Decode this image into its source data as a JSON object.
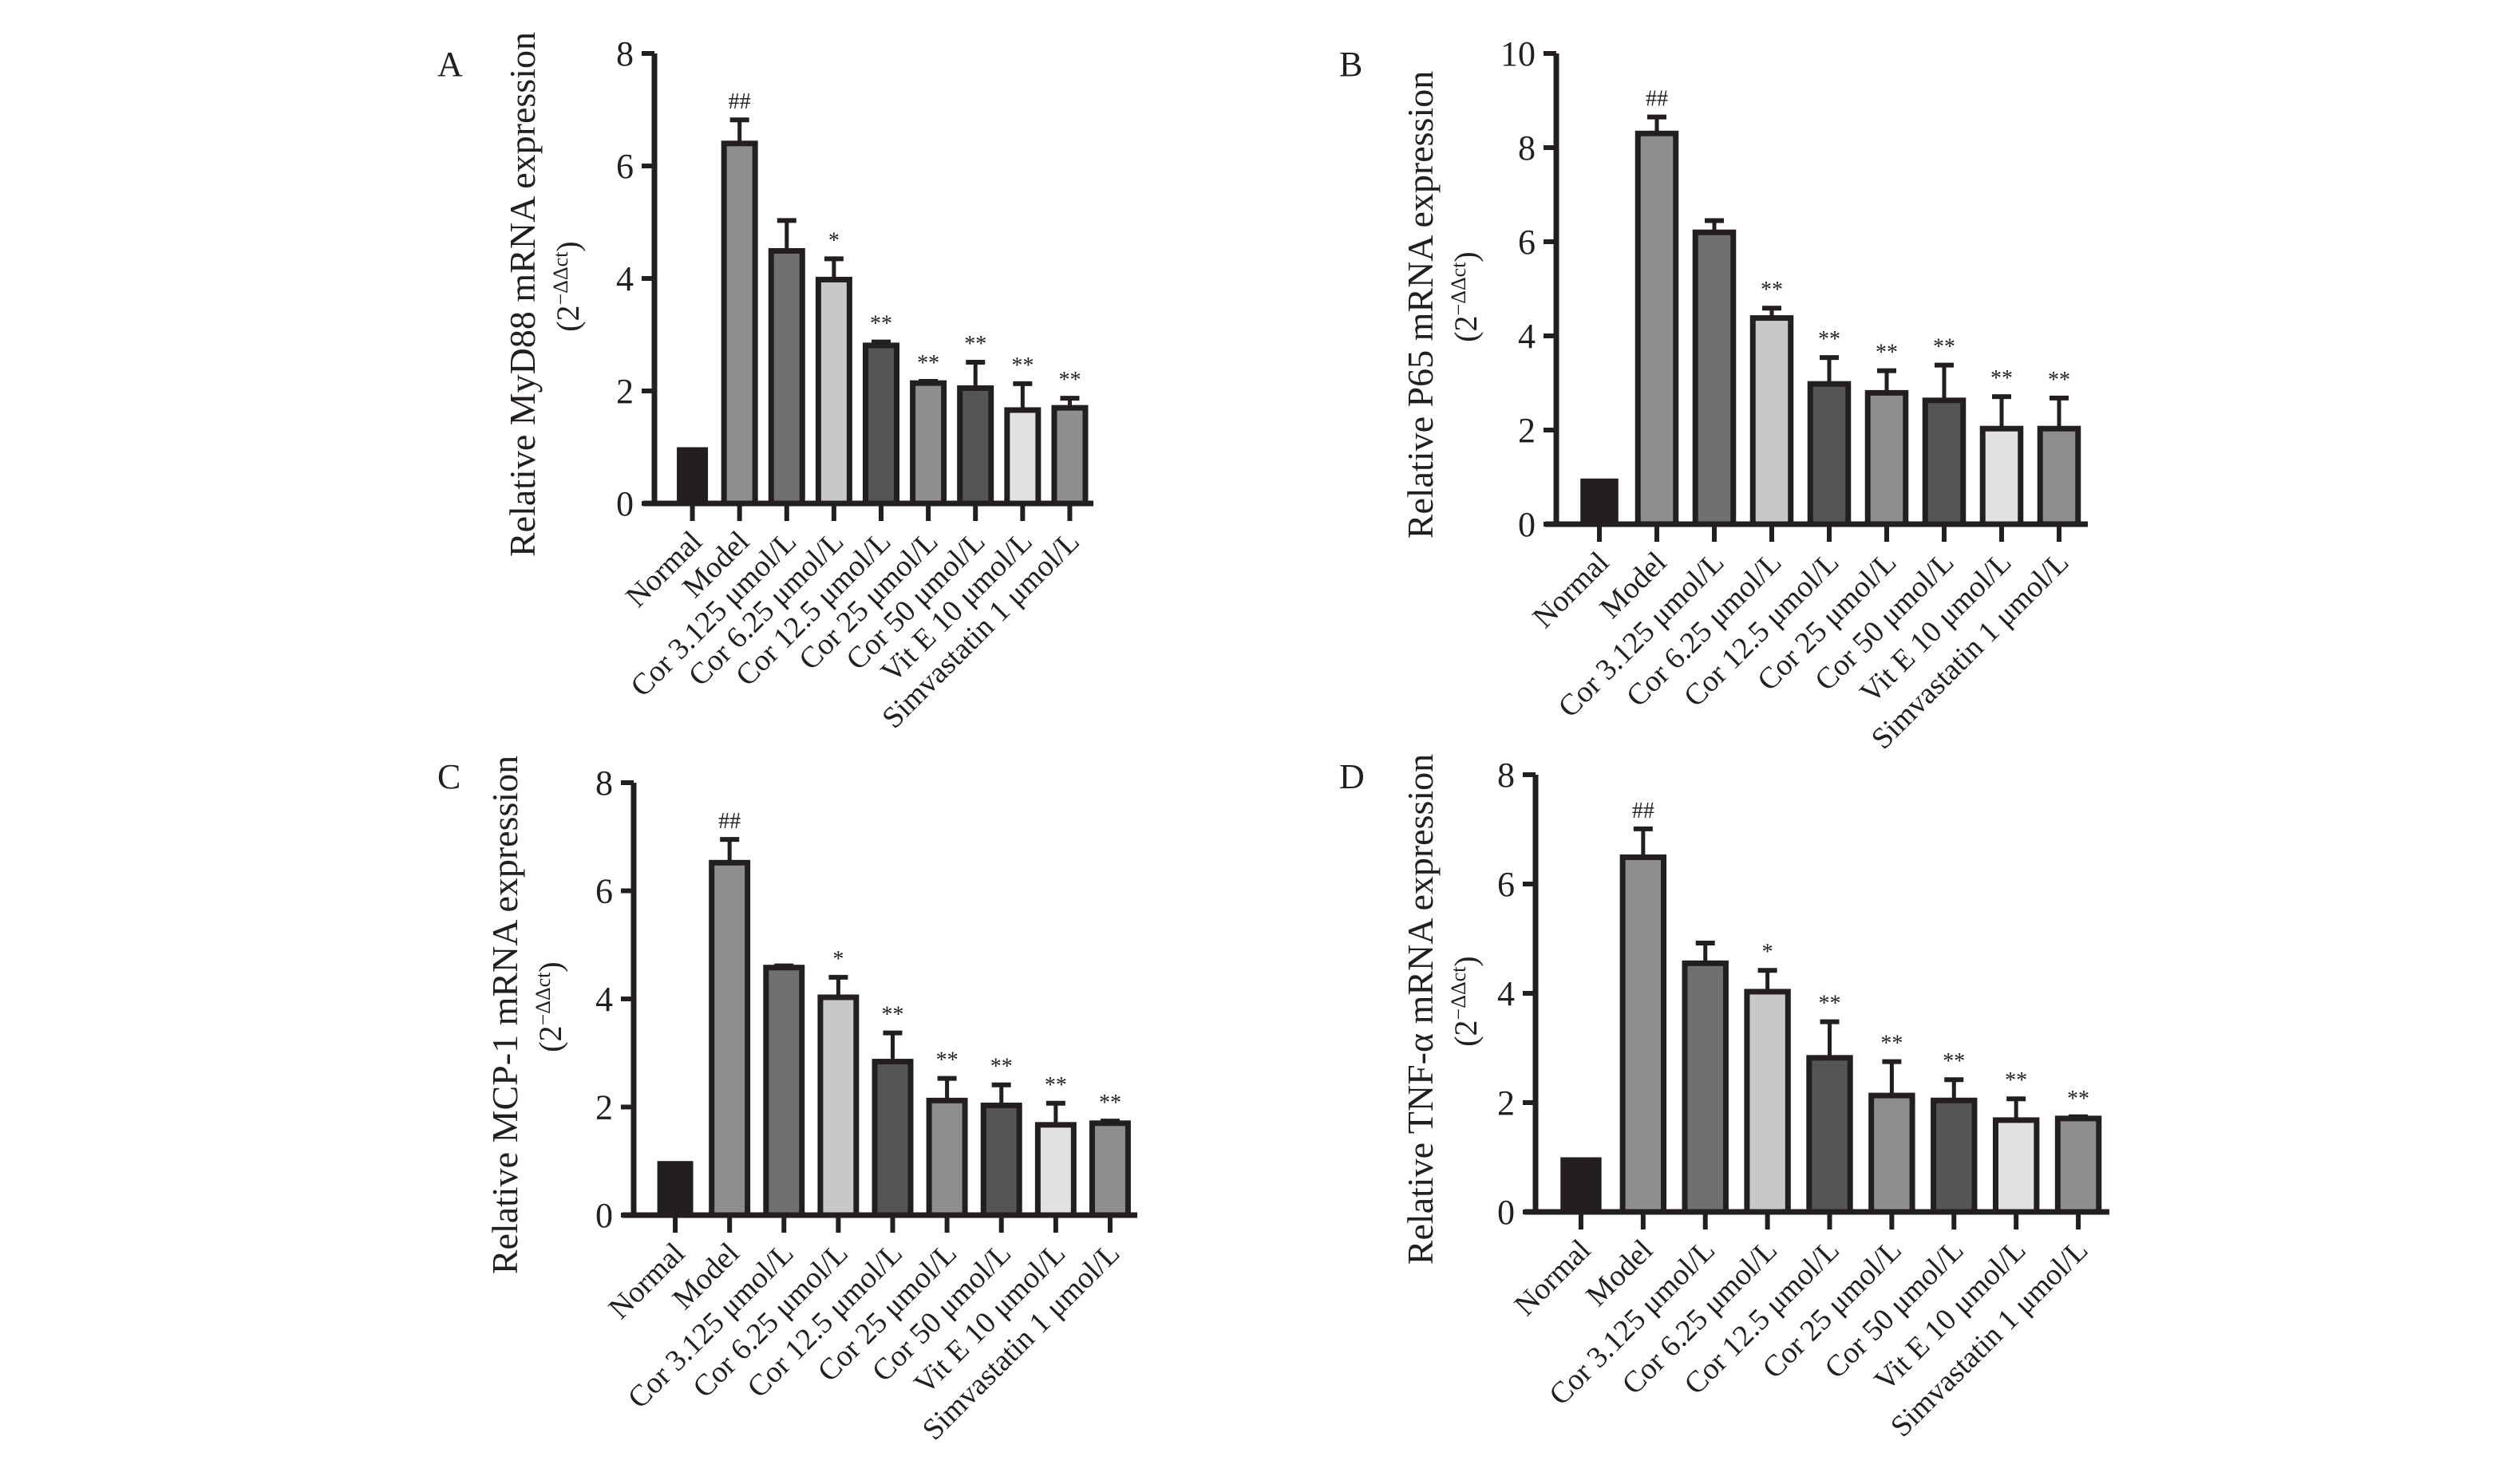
{
  "figure": {
    "colors": {
      "axis": "#231f20",
      "bar_outline": "#231f20",
      "bar_fills": [
        "#231f20",
        "#8e8e8e",
        "#707070",
        "#c8c8c8",
        "#555555",
        "#8e8e8e",
        "#555555",
        "#e2e2e2",
        "#8e8e8e"
      ]
    }
  },
  "chart_data": [
    {
      "panel": "A",
      "type": "bar",
      "title": "",
      "ylabel": "Relative MyD88 mRNA expression",
      "ylabel_unit_open": "(2",
      "ylabel_unit_sup": "−ΔΔct",
      "ylabel_unit_close": ")",
      "xlabel": "",
      "ylim": [
        0,
        8
      ],
      "yticks": [
        0,
        2,
        4,
        6,
        8
      ],
      "categories": [
        "Normal",
        "Model",
        "Cor 3.125 μmol/L",
        "Cor 6.25 μmol/L",
        "Cor 12.5 μmol/L",
        "Cor 25 μmol/L",
        "Cor 50 μmol/L",
        "Vit E 10 μmol/L",
        "Simvastatin 1 μmol/L"
      ],
      "values": [
        1.0,
        6.4,
        4.49,
        3.98,
        2.81,
        2.14,
        2.05,
        1.66,
        1.7
      ],
      "error_upper": [
        1.0,
        6.82,
        5.03,
        4.35,
        2.87,
        2.17,
        2.51,
        2.13,
        1.87
      ],
      "significance": [
        "",
        "##",
        "",
        "*",
        "**",
        "**",
        "**",
        "**",
        "**"
      ],
      "grid": false,
      "legend": "none"
    },
    {
      "panel": "B",
      "type": "bar",
      "title": "",
      "ylabel": "Relative P65 mRNA expression",
      "ylabel_unit_open": "(2",
      "ylabel_unit_sup": "−ΔΔct",
      "ylabel_unit_close": ")",
      "xlabel": "",
      "ylim": [
        0,
        10
      ],
      "yticks": [
        0,
        2,
        4,
        6,
        8,
        10
      ],
      "categories": [
        "Normal",
        "Model",
        "Cor 3.125 μmol/L",
        "Cor 6.25 μmol/L",
        "Cor 12.5 μmol/L",
        "Cor 25 μmol/L",
        "Cor 50 μmol/L",
        "Vit E 10 μmol/L",
        "Simvastatin 1 μmol/L"
      ],
      "values": [
        0.97,
        8.3,
        6.2,
        4.38,
        2.98,
        2.79,
        2.63,
        2.03,
        2.03
      ],
      "error_upper": [
        0.97,
        8.65,
        6.45,
        4.59,
        3.54,
        3.26,
        3.38,
        2.71,
        2.68
      ],
      "significance": [
        "",
        "##",
        "",
        "**",
        "**",
        "**",
        "**",
        "**",
        "**"
      ],
      "grid": false,
      "legend": "none"
    },
    {
      "panel": "C",
      "type": "bar",
      "title": "",
      "ylabel": "Relative MCP-1 mRNA expression",
      "ylabel_unit_open": "(2",
      "ylabel_unit_sup": "−ΔΔct",
      "ylabel_unit_close": ")",
      "xlabel": "",
      "ylim": [
        0,
        8
      ],
      "yticks": [
        0,
        2,
        4,
        6,
        8
      ],
      "categories": [
        "Normal",
        "Model",
        "Cor 3.125 μmol/L",
        "Cor 6.25 μmol/L",
        "Cor 12.5 μmol/L",
        "Cor 25 μmol/L",
        "Cor 50 μmol/L",
        "Vit E 10 μmol/L",
        "Simvastatin 1 μmol/L"
      ],
      "values": [
        1.0,
        6.52,
        4.58,
        4.03,
        2.84,
        2.12,
        2.03,
        1.67,
        1.7
      ],
      "error_upper": [
        1.0,
        6.95,
        4.61,
        4.4,
        3.37,
        2.53,
        2.41,
        2.07,
        1.74
      ],
      "significance": [
        "",
        "##",
        "",
        "*",
        "**",
        "**",
        "**",
        "**",
        "**"
      ],
      "grid": false,
      "legend": "none"
    },
    {
      "panel": "D",
      "type": "bar",
      "title": "",
      "ylabel": "Relative TNF-α mRNA expression",
      "ylabel_unit_open": "(2",
      "ylabel_unit_sup": "−ΔΔct",
      "ylabel_unit_close": ")",
      "xlabel": "",
      "ylim": [
        0,
        8
      ],
      "yticks": [
        0,
        2,
        4,
        6,
        8
      ],
      "categories": [
        "Normal",
        "Model",
        "Cor 3.125 μmol/L",
        "Cor 6.25 μmol/L",
        "Cor 12.5 μmol/L",
        "Cor 25 μmol/L",
        "Cor 50 μmol/L",
        "Vit E 10 μmol/L",
        "Simvastatin 1 μmol/L"
      ],
      "values": [
        1.0,
        6.49,
        4.55,
        4.03,
        2.82,
        2.13,
        2.04,
        1.68,
        1.71
      ],
      "error_upper": [
        1.0,
        7.01,
        4.92,
        4.42,
        3.48,
        2.75,
        2.42,
        2.07,
        1.74
      ],
      "significance": [
        "",
        "##",
        "",
        "*",
        "**",
        "**",
        "**",
        "**",
        "**"
      ],
      "grid": false,
      "legend": "none"
    }
  ]
}
